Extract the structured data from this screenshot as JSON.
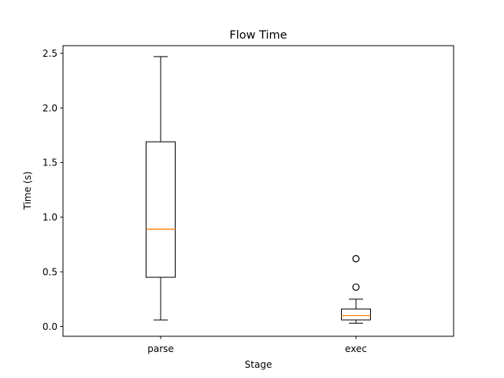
{
  "chart_data": {
    "type": "box",
    "title": "Flow Time",
    "xlabel": "Stage",
    "ylabel": "Time (s)",
    "ylim": [
      -0.09,
      2.57
    ],
    "yticks": [
      0.0,
      0.5,
      1.0,
      1.5,
      2.0,
      2.5
    ],
    "ytick_labels": [
      "0.0",
      "0.5",
      "1.0",
      "1.5",
      "2.0",
      "2.5"
    ],
    "grid": false,
    "categories": [
      "parse",
      "exec"
    ],
    "boxes": [
      {
        "category": "parse",
        "whisker_low": 0.06,
        "q1": 0.45,
        "median": 0.89,
        "q3": 1.69,
        "whisker_high": 2.47,
        "outliers": []
      },
      {
        "category": "exec",
        "whisker_low": 0.03,
        "q1": 0.06,
        "median": 0.1,
        "q3": 0.16,
        "whisker_high": 0.25,
        "outliers": [
          0.36,
          0.62
        ]
      }
    ],
    "colors": {
      "box": "#000000",
      "median": "#ff7f0e",
      "background": "#ffffff"
    }
  }
}
